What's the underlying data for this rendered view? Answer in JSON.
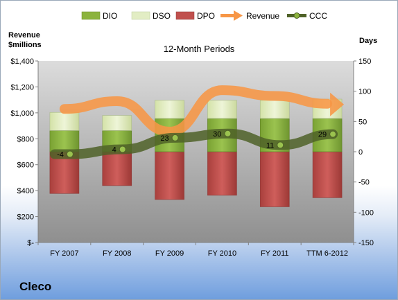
{
  "company": "Cleco",
  "chart_data": {
    "type": "bar",
    "title": "12-Month Periods",
    "ylabel_left": [
      "Revenue",
      "$millions"
    ],
    "ylabel_right": "Days",
    "categories": [
      "FY 2007",
      "FY 2008",
      "FY 2009",
      "FY 2010",
      "FY 2011",
      "TTM 6-2012"
    ],
    "ylim_left": [
      0,
      1400
    ],
    "ylim_right": [
      -150,
      150
    ],
    "left_ticks": [
      "$-",
      "$200",
      "$400",
      "$600",
      "$800",
      "$1,000",
      "$1,200",
      "$1,400"
    ],
    "right_ticks": [
      "-150",
      "-100",
      "-50",
      "0",
      "50",
      "100",
      "150"
    ],
    "legend_position": "top",
    "series": [
      {
        "name": "DIO",
        "axis": "right",
        "kind": "stacked-bar",
        "color": "#8cb33e",
        "values": [
          35,
          35,
          55,
          55,
          55,
          55
        ]
      },
      {
        "name": "DSO",
        "axis": "right",
        "kind": "stacked-bar",
        "color": "#e2edc4",
        "values": [
          30,
          25,
          30,
          30,
          30,
          32
        ]
      },
      {
        "name": "DPO",
        "axis": "right",
        "kind": "negative-bar",
        "color": "#c0504d",
        "values": [
          -69,
          -56,
          -79,
          -72,
          -91,
          -76
        ]
      },
      {
        "name": "Revenue",
        "axis": "left",
        "kind": "line",
        "color": "#f79646",
        "values": [
          1030,
          1090,
          855,
          1175,
          1130,
          1070
        ]
      },
      {
        "name": "CCC",
        "axis": "right",
        "kind": "line",
        "color": "#4f6228",
        "values": [
          -4,
          4,
          23,
          30,
          11,
          29
        ]
      }
    ],
    "data_labels": [
      "-4",
      "4",
      "23",
      "30",
      "11",
      "29"
    ],
    "grid": false
  }
}
